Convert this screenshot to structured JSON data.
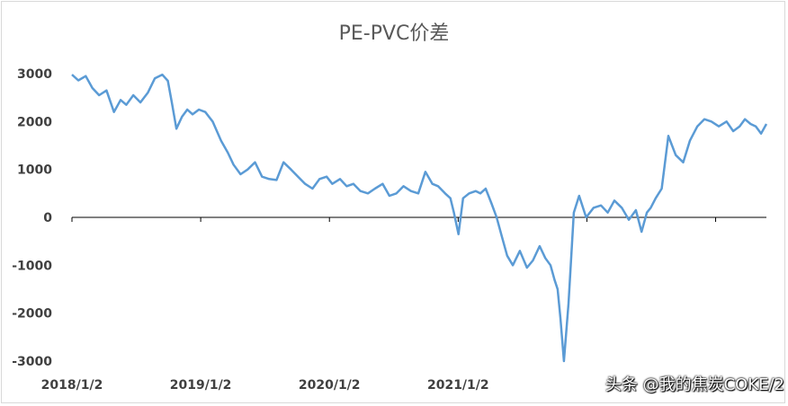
{
  "chart_data": {
    "type": "line",
    "title": "PE-PVC价差",
    "xlabel": "",
    "ylabel": "",
    "ylim": [
      -3000,
      3000
    ],
    "y_ticks": [
      "3000",
      "2000",
      "1000",
      "0",
      "-1000",
      "-2000",
      "-3000"
    ],
    "x_ticks": [
      "2018/1/2",
      "2019/1/2",
      "2020/1/2",
      "2021/1/2"
    ],
    "grid": false,
    "legend": "none",
    "line_color": "#5b9bd5",
    "axis_color": "#000000",
    "series": [
      {
        "x": [
          "2018-01-02",
          "2018-01-20",
          "2018-02-10",
          "2018-03-01",
          "2018-03-20",
          "2018-04-10",
          "2018-05-01",
          "2018-05-20",
          "2018-06-05",
          "2018-06-25",
          "2018-07-15",
          "2018-08-05",
          "2018-08-25",
          "2018-09-15",
          "2018-10-01",
          "2018-10-12",
          "2018-10-25",
          "2018-11-10",
          "2018-11-25",
          "2018-12-10",
          "2018-12-28",
          "2019-01-15",
          "2019-02-05",
          "2019-03-01",
          "2019-03-20",
          "2019-04-05",
          "2019-04-25",
          "2019-05-15",
          "2019-06-05",
          "2019-06-25",
          "2019-07-15",
          "2019-08-05",
          "2019-08-25",
          "2019-09-15",
          "2019-10-05",
          "2019-10-25",
          "2019-11-15",
          "2019-12-05",
          "2019-12-25",
          "2020-01-10",
          "2020-02-01",
          "2020-02-20",
          "2020-03-10",
          "2020-03-30",
          "2020-04-20",
          "2020-05-10",
          "2020-06-01",
          "2020-06-20",
          "2020-07-10",
          "2020-07-30",
          "2020-08-20",
          "2020-09-10",
          "2020-09-30",
          "2020-10-20",
          "2020-11-05",
          "2020-11-25",
          "2020-12-10",
          "2020-12-20",
          "2021-01-02",
          "2021-01-15",
          "2021-02-01",
          "2021-02-20",
          "2021-03-05",
          "2021-03-20",
          "2021-04-05",
          "2021-04-20",
          "2021-05-05",
          "2021-05-20",
          "2021-06-05",
          "2021-06-25",
          "2021-07-15",
          "2021-08-01",
          "2021-08-20",
          "2021-09-05",
          "2021-09-20",
          "2021-10-01",
          "2021-10-10",
          "2021-10-18",
          "2021-10-28",
          "2021-11-10",
          "2021-11-25",
          "2021-12-10",
          "2021-12-30",
          "2022-01-20",
          "2022-02-10",
          "2022-03-01",
          "2022-03-20",
          "2022-04-10",
          "2022-04-30",
          "2022-05-20",
          "2022-06-05",
          "2022-06-20",
          "2022-07-01",
          "2022-07-15",
          "2022-08-01",
          "2022-08-20",
          "2022-09-10",
          "2022-10-01",
          "2022-10-20",
          "2022-11-10",
          "2022-11-30",
          "2022-12-20",
          "2023-01-10",
          "2023-02-01",
          "2023-02-20",
          "2023-03-10",
          "2023-03-25",
          "2023-04-10",
          "2023-04-25",
          "2023-05-10",
          "2023-05-25"
        ],
        "values": [
          2980,
          2860,
          2950,
          2700,
          2550,
          2650,
          2200,
          2450,
          2350,
          2550,
          2400,
          2600,
          2900,
          2980,
          2850,
          2400,
          1850,
          2100,
          2250,
          2150,
          2250,
          2200,
          2000,
          1600,
          1350,
          1100,
          900,
          1000,
          1150,
          850,
          800,
          780,
          1150,
          1000,
          850,
          700,
          600,
          800,
          850,
          700,
          800,
          650,
          700,
          550,
          500,
          600,
          700,
          450,
          500,
          650,
          550,
          500,
          950,
          700,
          650,
          500,
          400,
          100,
          -350,
          400,
          500,
          550,
          500,
          600,
          300,
          0,
          -400,
          -800,
          -1000,
          -700,
          -1050,
          -900,
          -600,
          -850,
          -1000,
          -1300,
          -1500,
          -2100,
          -3000,
          -1800,
          100,
          450,
          0,
          200,
          250,
          100,
          350,
          200,
          -50,
          150,
          -300,
          100,
          200,
          400,
          600,
          1700,
          1300,
          1150,
          1600,
          1900,
          2050,
          2000,
          1900,
          2000,
          1800,
          1900,
          2050,
          1950,
          1900,
          1750,
          1950
        ]
      }
    ]
  },
  "watermark": {
    "text": "头条 @我的焦炭COKE/2"
  }
}
